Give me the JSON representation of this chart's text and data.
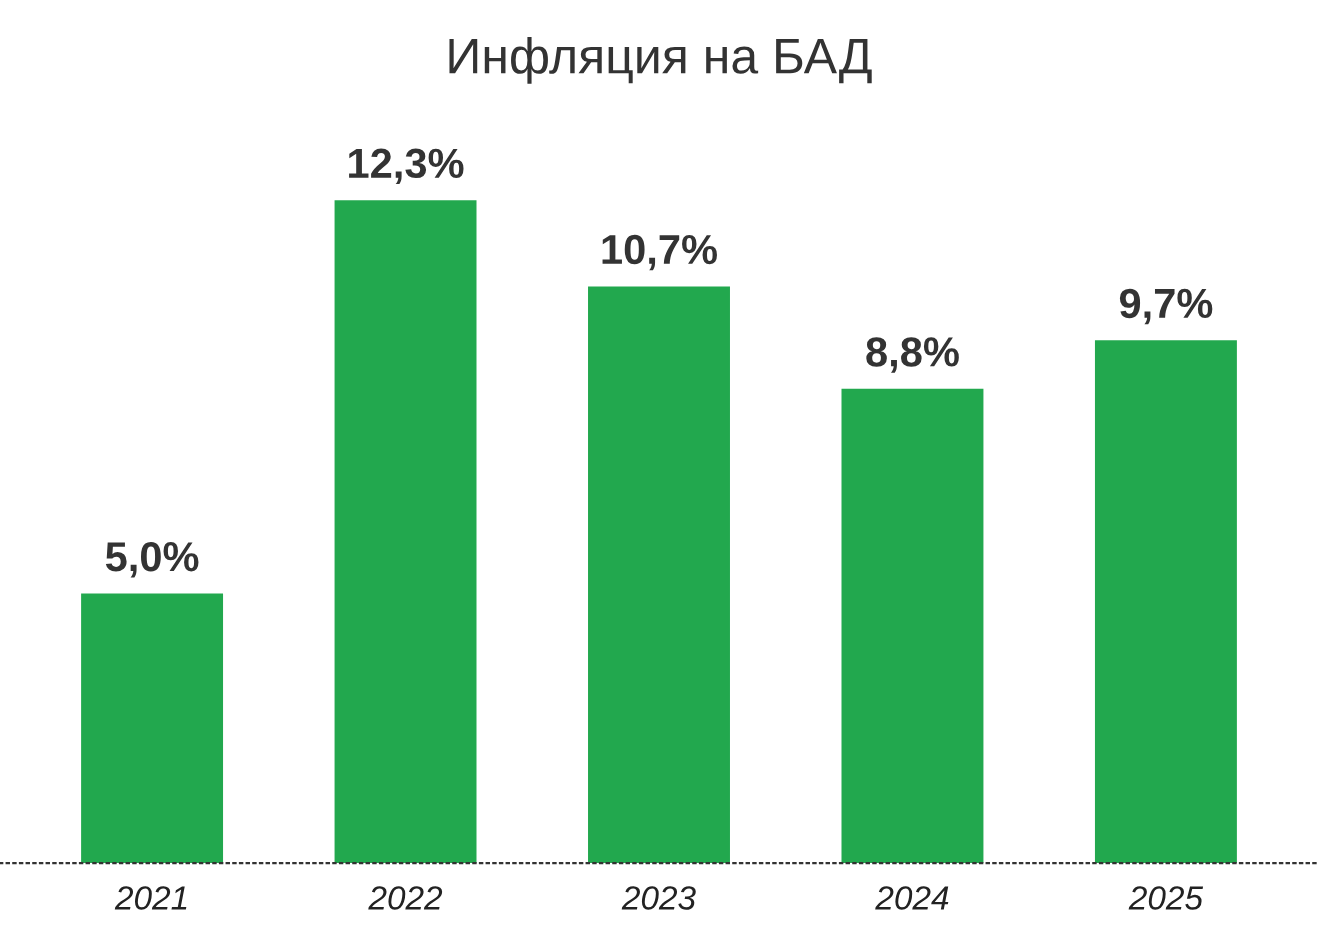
{
  "chart_data": {
    "type": "bar",
    "title": "Инфляция на БАД",
    "categories": [
      "2021",
      "2022",
      "2023",
      "2024",
      "2025"
    ],
    "values": [
      5.0,
      12.3,
      10.7,
      8.8,
      9.7
    ],
    "value_labels": [
      "5,0%",
      "12,3%",
      "10,7%",
      "8,8%",
      "9,7%"
    ],
    "color": "#22a84e",
    "grid": false,
    "legend": false
  }
}
